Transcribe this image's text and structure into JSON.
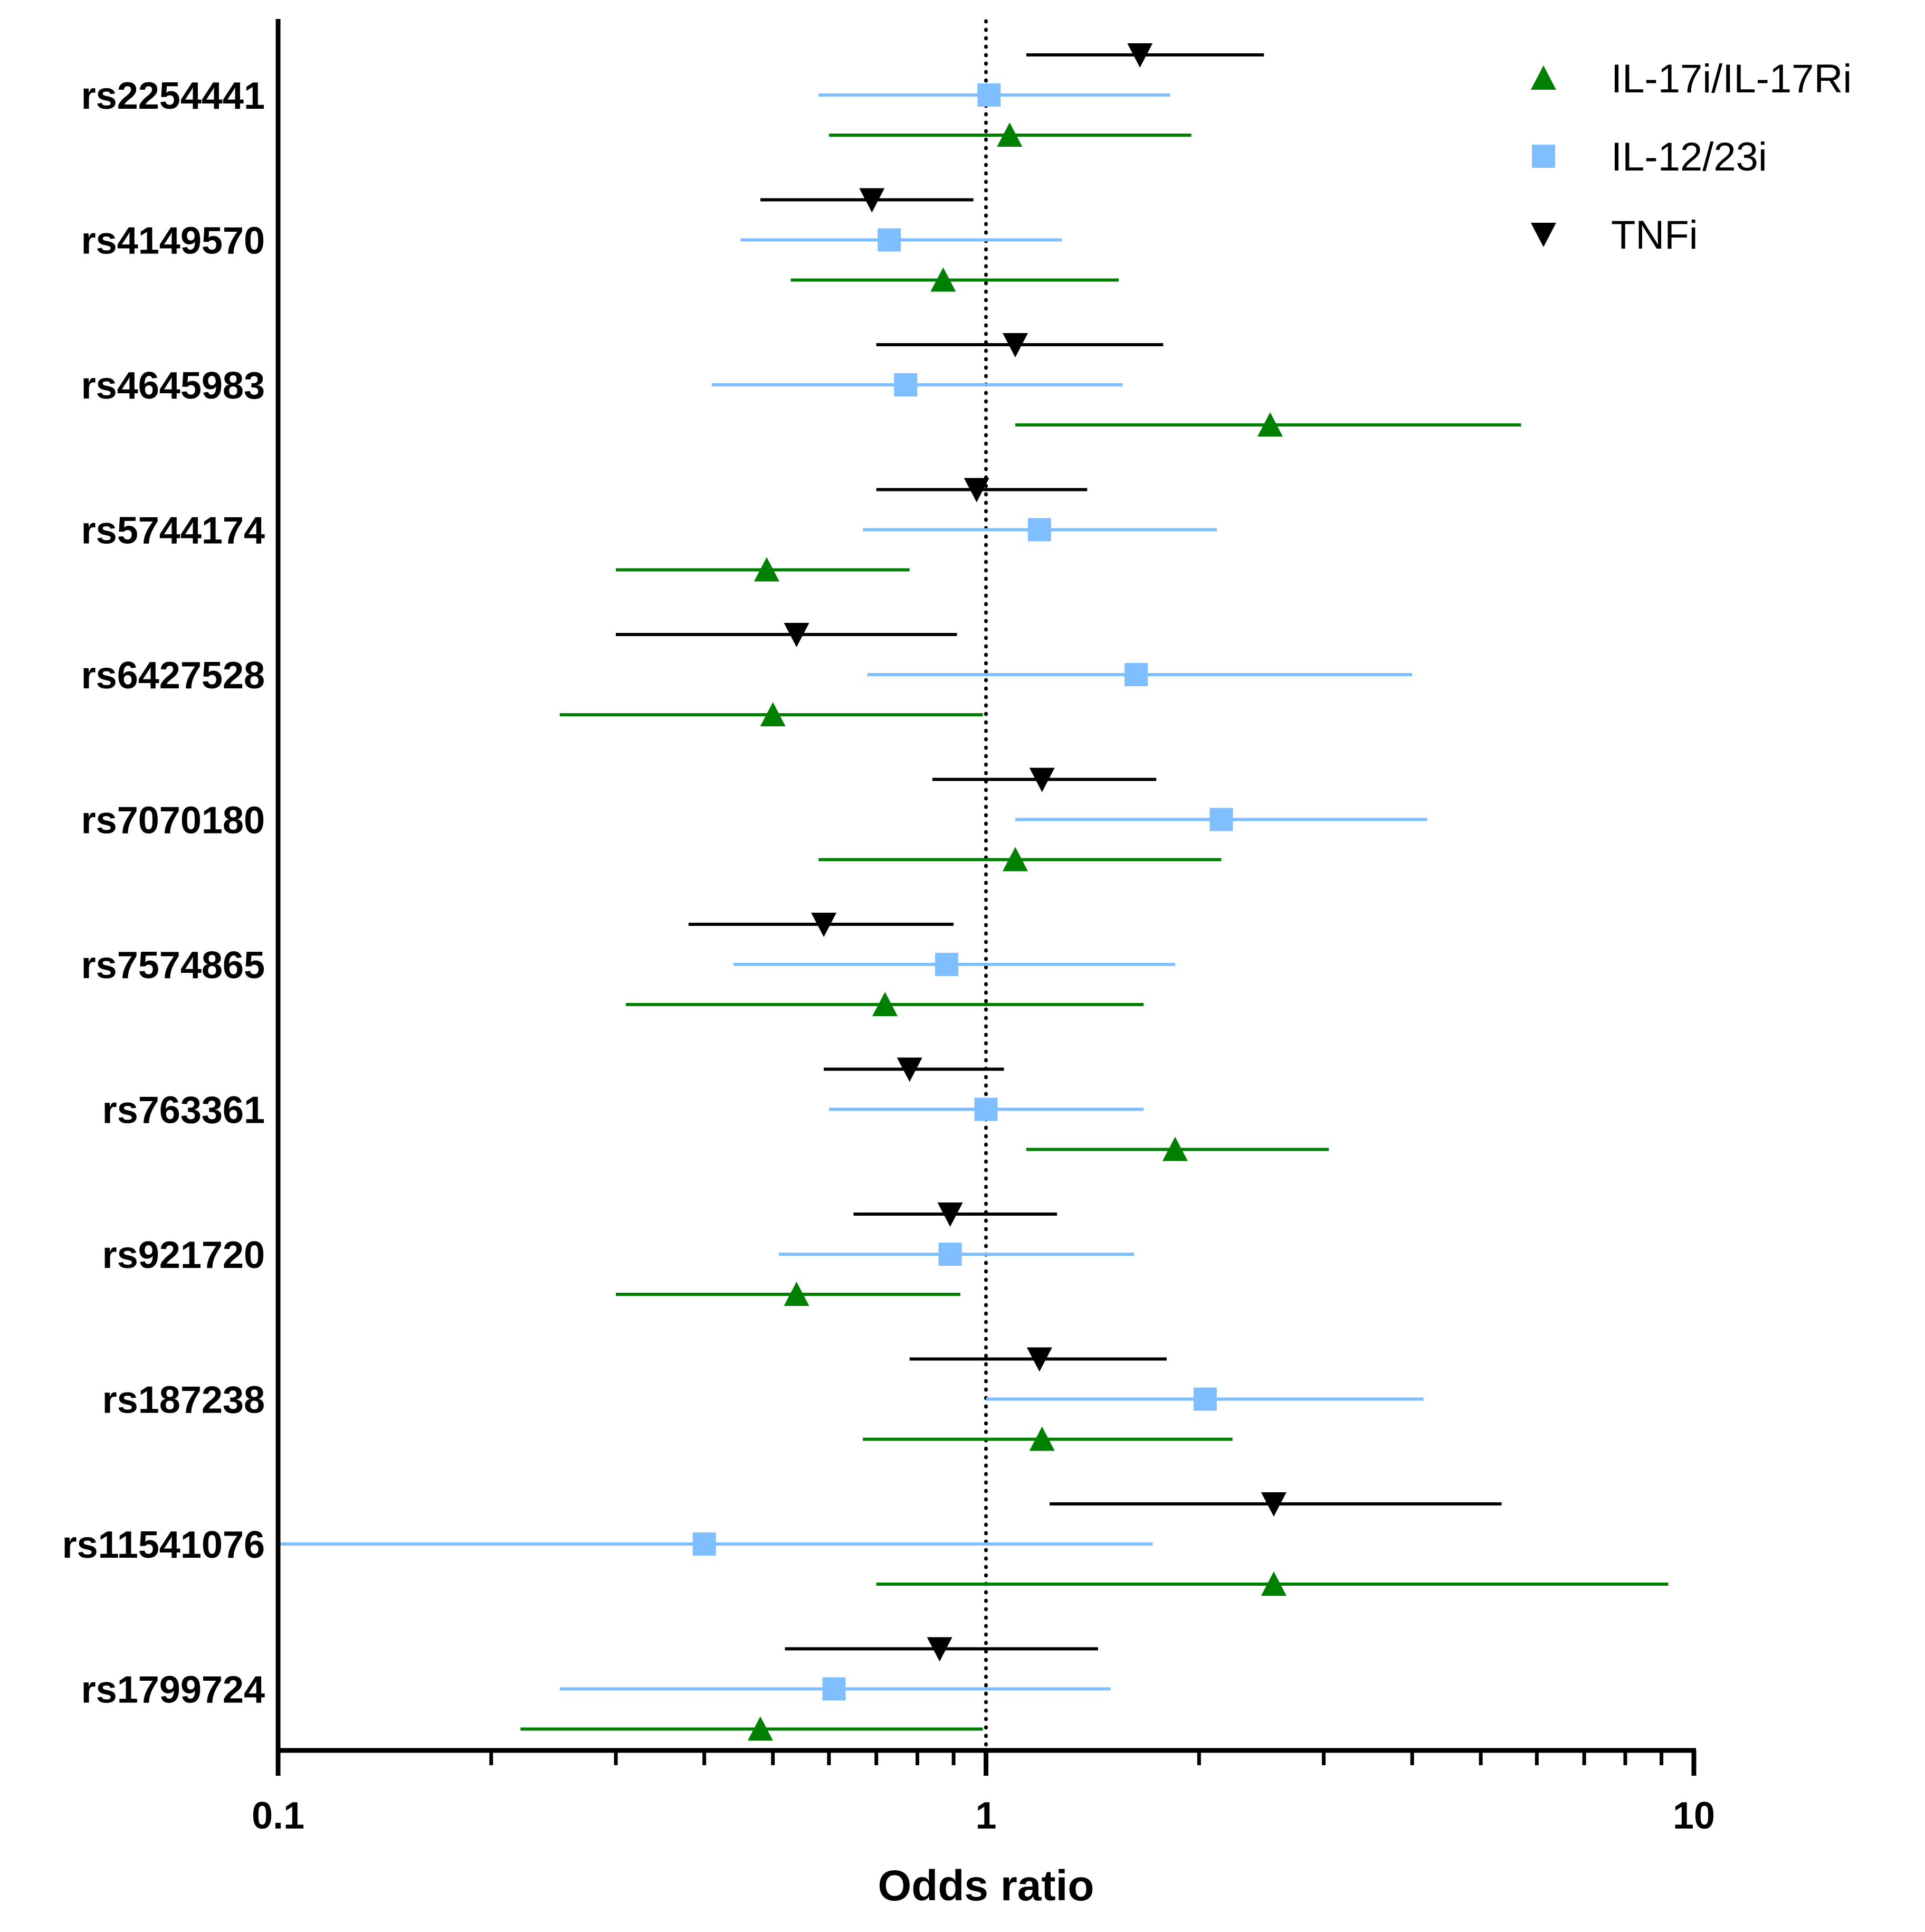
{
  "chart_data": {
    "type": "forest",
    "title": "",
    "xlabel": "Odds ratio",
    "ylabel": "",
    "x_scale": "log",
    "xlim": [
      0.1,
      10
    ],
    "x_ticks": [
      {
        "value": 0.1,
        "label": "0.1"
      },
      {
        "value": 1,
        "label": "1"
      },
      {
        "value": 10,
        "label": "10"
      }
    ],
    "reference_line": 1,
    "categories": [
      "rs2254441",
      "rs4149570",
      "rs4645983",
      "rs5744174",
      "rs6427528",
      "rs7070180",
      "rs7574865",
      "rs763361",
      "rs921720",
      "rs187238",
      "rs11541076",
      "rs1799724"
    ],
    "legend_position": "top-right",
    "series": [
      {
        "name": "IL-17i/IL-17Ri",
        "color": "#008000",
        "marker": "triangle-up",
        "or": [
          1.08,
          0.87,
          2.52,
          0.49,
          0.5,
          1.1,
          0.72,
          1.85,
          0.54,
          1.2,
          2.55,
          0.48
        ],
        "lower": [
          0.6,
          0.53,
          1.1,
          0.3,
          0.25,
          0.58,
          0.31,
          1.14,
          0.3,
          0.67,
          0.7,
          0.22
        ],
        "upper": [
          1.95,
          1.54,
          5.7,
          0.78,
          0.99,
          2.15,
          1.67,
          3.05,
          0.92,
          2.23,
          9.2,
          0.99
        ]
      },
      {
        "name": "IL-12/23i",
        "color": "#7fbfff",
        "marker": "square",
        "or": [
          1.01,
          0.73,
          0.77,
          1.19,
          1.63,
          2.15,
          0.88,
          1.0,
          0.89,
          2.04,
          0.4,
          0.61
        ],
        "lower": [
          0.58,
          0.45,
          0.41,
          0.67,
          0.68,
          1.1,
          0.44,
          0.6,
          0.51,
          1.0,
          0.1,
          0.25
        ],
        "upper": [
          1.82,
          1.28,
          1.56,
          2.12,
          4.0,
          4.2,
          1.85,
          1.67,
          1.62,
          4.15,
          1.72,
          1.5
        ]
      },
      {
        "name": "TNFi",
        "color": "#000000",
        "marker": "triangle-down",
        "or": [
          1.65,
          0.69,
          1.1,
          0.97,
          0.54,
          1.2,
          0.59,
          0.78,
          0.89,
          1.19,
          2.55,
          0.86
        ],
        "lower": [
          1.14,
          0.48,
          0.7,
          0.7,
          0.3,
          0.84,
          0.38,
          0.59,
          0.65,
          0.78,
          1.23,
          0.52
        ],
        "upper": [
          2.47,
          0.96,
          1.78,
          1.39,
          0.91,
          1.74,
          0.9,
          1.06,
          1.26,
          1.8,
          5.35,
          1.44
        ]
      }
    ]
  }
}
